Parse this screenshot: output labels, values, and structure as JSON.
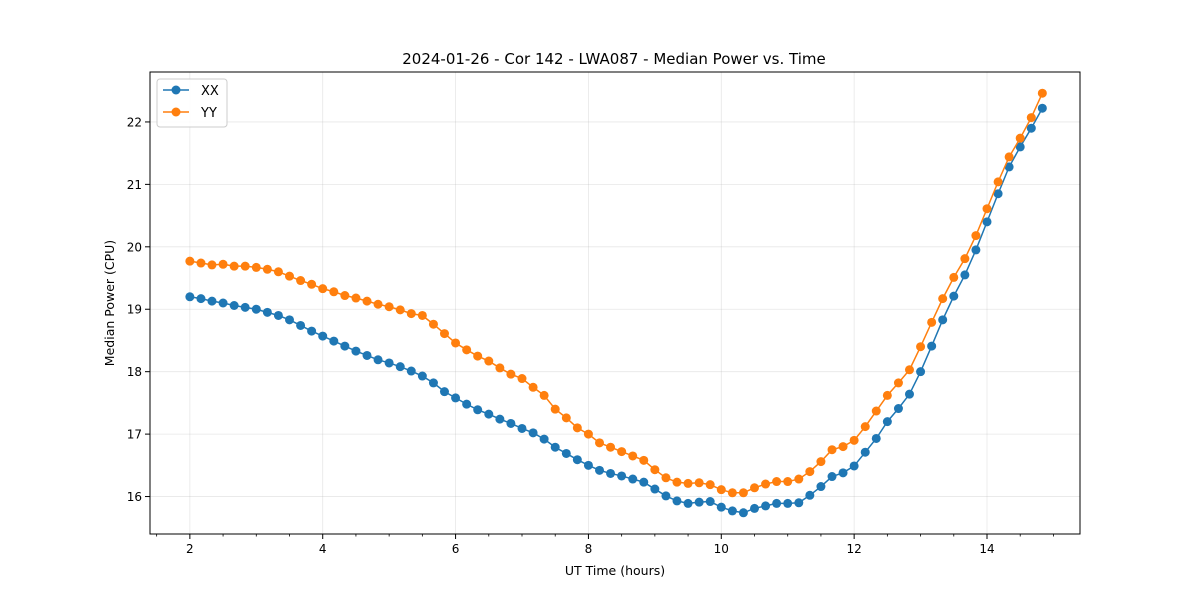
{
  "chart_data": {
    "type": "line",
    "title": "2024-01-26 - Cor 142 - LWA087 - Median Power vs. Time",
    "xlabel": "UT Time (hours)",
    "ylabel": "Median Power (CPU)",
    "xlim": [
      1.4,
      15.4
    ],
    "ylim": [
      15.4,
      22.8
    ],
    "xticks": [
      2,
      4,
      6,
      8,
      10,
      12,
      14
    ],
    "yticks": [
      16,
      17,
      18,
      19,
      20,
      21,
      22
    ],
    "grid": true,
    "legend_position": "top-left",
    "x": [
      2.0,
      2.167,
      2.333,
      2.5,
      2.667,
      2.833,
      3.0,
      3.167,
      3.333,
      3.5,
      3.667,
      3.833,
      4.0,
      4.167,
      4.333,
      4.5,
      4.667,
      4.833,
      5.0,
      5.167,
      5.333,
      5.5,
      5.667,
      5.833,
      6.0,
      6.167,
      6.333,
      6.5,
      6.667,
      6.833,
      7.0,
      7.167,
      7.333,
      7.5,
      7.667,
      7.833,
      8.0,
      8.167,
      8.333,
      8.5,
      8.667,
      8.833,
      9.0,
      9.167,
      9.333,
      9.5,
      9.667,
      9.833,
      10.0,
      10.167,
      10.333,
      10.5,
      10.667,
      10.833,
      11.0,
      11.167,
      11.333,
      11.5,
      11.667,
      11.833,
      12.0,
      12.167,
      12.333,
      12.5,
      12.667,
      12.833,
      13.0,
      13.167,
      13.333,
      13.5,
      13.667,
      13.833,
      14.0,
      14.167,
      14.333,
      14.5,
      14.667,
      14.833
    ],
    "series": [
      {
        "name": "XX",
        "color": "#1f77b4",
        "values": [
          19.2,
          19.17,
          19.13,
          19.1,
          19.06,
          19.03,
          19.0,
          18.95,
          18.9,
          18.83,
          18.74,
          18.65,
          18.57,
          18.49,
          18.41,
          18.33,
          18.26,
          18.19,
          18.14,
          18.08,
          18.01,
          17.93,
          17.82,
          17.68,
          17.58,
          17.48,
          17.39,
          17.32,
          17.24,
          17.17,
          17.09,
          17.02,
          16.92,
          16.79,
          16.69,
          16.59,
          16.5,
          16.42,
          16.37,
          16.33,
          16.28,
          16.23,
          16.12,
          16.01,
          15.93,
          15.89,
          15.91,
          15.92,
          15.83,
          15.77,
          15.74,
          15.81,
          15.85,
          15.89,
          15.89,
          15.9,
          16.02,
          16.16,
          16.32,
          16.38,
          16.49,
          16.71,
          16.93,
          17.2,
          17.41,
          17.64,
          18.0,
          18.41,
          18.83,
          19.21,
          19.55,
          19.95,
          20.4,
          20.85,
          21.28,
          21.6,
          21.9,
          22.22
        ]
      },
      {
        "name": "YY",
        "color": "#ff7f0e",
        "values": [
          19.77,
          19.74,
          19.71,
          19.72,
          19.69,
          19.69,
          19.67,
          19.64,
          19.6,
          19.53,
          19.46,
          19.4,
          19.33,
          19.28,
          19.22,
          19.18,
          19.13,
          19.08,
          19.04,
          18.99,
          18.93,
          18.9,
          18.76,
          18.61,
          18.46,
          18.35,
          18.25,
          18.17,
          18.06,
          17.96,
          17.89,
          17.75,
          17.62,
          17.4,
          17.26,
          17.1,
          17.0,
          16.86,
          16.79,
          16.72,
          16.65,
          16.58,
          16.43,
          16.3,
          16.23,
          16.21,
          16.22,
          16.19,
          16.11,
          16.06,
          16.06,
          16.14,
          16.2,
          16.24,
          16.24,
          16.28,
          16.4,
          16.56,
          16.75,
          16.8,
          16.9,
          17.12,
          17.37,
          17.62,
          17.82,
          18.03,
          18.4,
          18.79,
          19.17,
          19.51,
          19.81,
          20.18,
          20.61,
          21.04,
          21.44,
          21.74,
          22.07,
          22.46
        ]
      }
    ]
  }
}
